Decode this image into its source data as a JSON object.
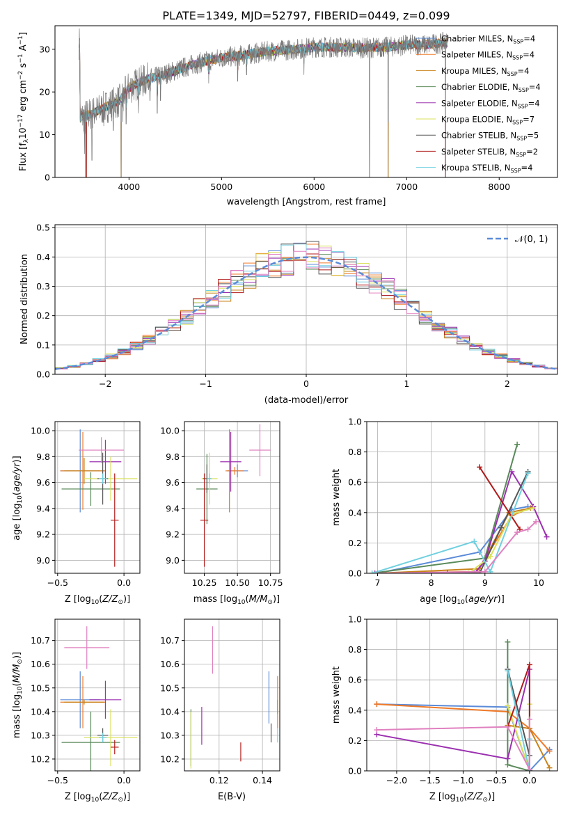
{
  "figure": {
    "title": "PLATE=1349, MJD=52797, FIBERID=0449, z=0.099"
  },
  "colors": {
    "Chabrier MILES": "#5b8bd8",
    "Salpeter MILES": "#f07a28",
    "Kroupa MILES": "#c9831a",
    "Chabrier ELODIE": "#5a8a5a",
    "Salpeter ELODIE": "#9b30b0",
    "Kroupa ELODIE": "#d9e05a",
    "Chabrier STELIB": "#555555",
    "Salpeter STELIB": "#b01a1a",
    "Kroupa STELIB": "#70d0e0",
    "pink": "#e080c0",
    "gauss": "#5b8bd8"
  },
  "chart_data": [
    {
      "id": "spectrum",
      "type": "line",
      "xlabel": "wavelength [Angstrom, rest frame]",
      "ylabel": "Flux [f",
      "xlim": [
        3200,
        8630
      ],
      "ylim": [
        0,
        35.5
      ],
      "xticks": [
        4000,
        5000,
        6000,
        7000,
        8000
      ],
      "yticks": [
        0,
        10,
        20,
        30
      ],
      "grid": false,
      "legend_position": "right",
      "legend": [
        {
          "label": "Chabrier MILES, N",
          "n": "4",
          "color": "#5b8bd8"
        },
        {
          "label": "Salpeter MILES, N",
          "n": "4",
          "color": "#f07a28"
        },
        {
          "label": "Kroupa MILES, N",
          "n": "4",
          "color": "#c9831a"
        },
        {
          "label": "Chabrier ELODIE, N",
          "n": "4",
          "color": "#5a8a5a"
        },
        {
          "label": "Salpeter ELODIE, N",
          "n": "4",
          "color": "#9b30b0"
        },
        {
          "label": "Kroupa ELODIE, N",
          "n": "7",
          "color": "#d9e05a"
        },
        {
          "label": "Chabrier STELIB, N",
          "n": "5",
          "color": "#555555"
        },
        {
          "label": "Salpeter STELIB, N",
          "n": "2",
          "color": "#b01a1a"
        },
        {
          "label": "Kroupa STELIB, N",
          "n": "4",
          "color": "#70d0e0"
        }
      ],
      "continuum": [
        [
          3470,
          14
        ],
        [
          3600,
          15
        ],
        [
          3700,
          16
        ],
        [
          3800,
          17
        ],
        [
          3900,
          18
        ],
        [
          4000,
          21
        ],
        [
          4100,
          22
        ],
        [
          4200,
          23
        ],
        [
          4300,
          23.5
        ],
        [
          4500,
          25
        ],
        [
          4700,
          26.5
        ],
        [
          5000,
          28
        ],
        [
          5200,
          28.5
        ],
        [
          5500,
          29.5
        ],
        [
          5800,
          30
        ],
        [
          6000,
          30.5
        ],
        [
          6200,
          30.5
        ],
        [
          6500,
          30.3
        ],
        [
          6800,
          30.5
        ],
        [
          7000,
          31
        ],
        [
          7200,
          31
        ],
        [
          7400,
          31.5
        ]
      ],
      "data_range": [
        3460,
        7440
      ],
      "dips": [
        [
          3520,
          5.5
        ],
        [
          3540,
          0
        ],
        [
          3600,
          4
        ],
        [
          3727,
          12
        ],
        [
          3830,
          11
        ],
        [
          3915,
          0
        ],
        [
          3934,
          13
        ],
        [
          3969,
          12.5
        ],
        [
          4102,
          15
        ],
        [
          4227,
          18
        ],
        [
          4304,
          15
        ],
        [
          4340,
          18
        ],
        [
          4861,
          22
        ],
        [
          5175,
          22.5
        ],
        [
          5270,
          24
        ],
        [
          5890,
          24
        ],
        [
          6600,
          0
        ],
        [
          6800,
          0
        ],
        [
          7420,
          0
        ]
      ]
    },
    {
      "id": "residuals",
      "type": "histogram",
      "xlabel": "(data-model)/error",
      "ylabel": "Normed distribution",
      "xlim": [
        -2.5,
        2.5
      ],
      "ylim": [
        0,
        0.51
      ],
      "xticks": [
        -2,
        -1,
        0,
        1,
        2
      ],
      "yticks": [
        0,
        0.1,
        0.2,
        0.3,
        0.4,
        0.5
      ],
      "grid": true,
      "bin_width": 0.125,
      "legend": [
        {
          "label": "𝒩(0, 1)",
          "color": "#5b8bd8",
          "style": "dashed"
        }
      ],
      "legend_position": "top-right"
    },
    {
      "id": "age_vs_z",
      "type": "errorbar",
      "xlabel": "Z [log",
      "ylabel": "age  [log",
      "xlim": [
        -0.52,
        0.12
      ],
      "ylim": [
        8.9,
        10.07
      ],
      "xticks": [
        -0.5,
        0.0
      ],
      "xticklabels": [
        "−0.5",
        "0.0"
      ],
      "yticks": [
        9.0,
        9.2,
        9.4,
        9.6,
        9.8,
        10.0
      ],
      "grid": true,
      "points": [
        {
          "color": "#5b8bd8",
          "x": -0.33,
          "xerr": 0.15,
          "y": 9.69,
          "yerr": 0.32
        },
        {
          "color": "#f07a28",
          "x": -0.31,
          "xerr": 0.17,
          "y": 9.69,
          "yerr": 0.3
        },
        {
          "color": "#c9831a",
          "x": -0.3,
          "xerr": 0.15,
          "y": 9.69,
          "yerr": 0.1
        },
        {
          "color": "#5a8a5a",
          "x": -0.25,
          "xerr": 0.22,
          "y": 9.55,
          "yerr": 0.13
        },
        {
          "color": "#9b30b0",
          "x": -0.14,
          "xerr": 0.12,
          "y": 9.76,
          "yerr": 0.17
        },
        {
          "color": "#d9e05a",
          "x": -0.1,
          "xerr": 0.2,
          "y": 9.63,
          "yerr": 0.17
        },
        {
          "color": "#555555",
          "x": -0.16,
          "xerr": 0.04,
          "y": 9.63,
          "yerr": 0.2
        },
        {
          "color": "#b01a1a",
          "x": -0.07,
          "xerr": 0.03,
          "y": 9.31,
          "yerr": 0.36
        },
        {
          "color": "#70d0e0",
          "x": -0.16,
          "xerr": 0.03,
          "y": 9.63,
          "yerr": 0.04
        },
        {
          "color": "#e080c0",
          "x": -0.17,
          "xerr": 0.17,
          "y": 9.85,
          "yerr": 0.1
        }
      ]
    },
    {
      "id": "age_vs_mass",
      "type": "errorbar",
      "xlabel": "mass [log",
      "xlim": [
        10.1,
        10.82
      ],
      "ylim": [
        8.9,
        10.07
      ],
      "xticks": [
        10.25,
        10.5,
        10.75
      ],
      "yticks": [
        9.0,
        9.2,
        9.4,
        9.6,
        9.8,
        10.0
      ],
      "grid": true,
      "points": [
        {
          "color": "#5b8bd8",
          "x": 10.5,
          "xerr": 0.08,
          "y": 9.69,
          "yerr": 0.05
        },
        {
          "color": "#f07a28",
          "x": 10.48,
          "xerr": 0.07,
          "y": 9.69,
          "yerr": 0.03
        },
        {
          "color": "#c9831a",
          "x": 10.44,
          "xerr": 0.01,
          "y": 9.69,
          "yerr": 0.32
        },
        {
          "color": "#5a8a5a",
          "x": 10.27,
          "xerr": 0.08,
          "y": 9.55,
          "yerr": 0.27
        },
        {
          "color": "#9b30b0",
          "x": 10.45,
          "xerr": 0.08,
          "y": 9.76,
          "yerr": 0.23
        },
        {
          "color": "#d9e05a",
          "x": 10.29,
          "xerr": 0.06,
          "y": 9.63,
          "yerr": 0.2
        },
        {
          "color": "#555555",
          "x": 10.27,
          "xerr": 0.03,
          "y": 9.63,
          "yerr": 0.11
        },
        {
          "color": "#b01a1a",
          "x": 10.25,
          "xerr": 0.03,
          "y": 9.31,
          "yerr": 0.36
        },
        {
          "color": "#70d0e0",
          "x": 10.29,
          "xerr": 0.02,
          "y": 9.63,
          "yerr": 0.04
        },
        {
          "color": "#e080c0",
          "x": 10.67,
          "xerr": 0.08,
          "y": 9.85,
          "yerr": 0.2
        }
      ]
    },
    {
      "id": "weight_vs_age",
      "type": "line",
      "xlabel": "age  [log",
      "ylabel": "mass weight",
      "xlim": [
        6.8,
        10.35
      ],
      "ylim": [
        0,
        1.0
      ],
      "xticks": [
        7,
        8,
        9,
        10
      ],
      "yticks": [
        0,
        0.2,
        0.4,
        0.6,
        0.8,
        1.0
      ],
      "grid": true,
      "series": [
        {
          "color": "#5b8bd8",
          "x": [
            7.0,
            8.9,
            9.5,
            9.8
          ],
          "y": [
            0.0,
            0.14,
            0.42,
            0.44
          ]
        },
        {
          "color": "#f07a28",
          "x": [
            6.95,
            8.85,
            9.5,
            9.9
          ],
          "y": [
            0.0,
            0.01,
            0.38,
            0.44
          ]
        },
        {
          "color": "#c9831a",
          "x": [
            7.0,
            8.9,
            9.45,
            9.85
          ],
          "y": [
            0.0,
            0.03,
            0.4,
            0.43
          ]
        },
        {
          "color": "#5a8a5a",
          "x": [
            6.9,
            9.0,
            9.6
          ],
          "y": [
            0.0,
            0.1,
            0.85
          ]
        },
        {
          "color": "#9b30b0",
          "x": [
            6.95,
            8.8,
            9.0,
            9.5,
            9.9,
            10.15
          ],
          "y": [
            0.0,
            0.0,
            0.08,
            0.67,
            0.44,
            0.24
          ]
        },
        {
          "color": "#d9e05a",
          "x": [
            6.9,
            8.7,
            9.1,
            9.5,
            9.9
          ],
          "y": [
            0.0,
            0.0,
            0.11,
            0.39,
            0.43
          ]
        },
        {
          "color": "#555555",
          "x": [
            8.3,
            8.9,
            9.3,
            9.8
          ],
          "y": [
            0.0,
            0.0,
            0.3,
            0.67
          ]
        },
        {
          "color": "#b01a1a",
          "x": [
            8.9,
            9.65
          ],
          "y": [
            0.7,
            0.29
          ]
        },
        {
          "color": "#70d0e0",
          "x": [
            6.9,
            8.8,
            9.1,
            9.8
          ],
          "y": [
            0.0,
            0.21,
            0.01,
            0.66
          ]
        },
        {
          "color": "#e080c0",
          "x": [
            7.0,
            9.0,
            9.6,
            9.8,
            9.95
          ],
          "y": [
            0.0,
            0.01,
            0.27,
            0.29,
            0.34
          ]
        }
      ]
    },
    {
      "id": "mass_vs_z",
      "type": "errorbar",
      "xlabel": "Z [log",
      "ylabel": "mass [log",
      "xlim": [
        -0.52,
        0.12
      ],
      "ylim": [
        10.15,
        10.79
      ],
      "xticks": [
        -0.5,
        0.0
      ],
      "xticklabels": [
        "−0.5",
        "0.0"
      ],
      "yticks": [
        10.2,
        10.3,
        10.4,
        10.5,
        10.6,
        10.7
      ],
      "grid": true,
      "points": [
        {
          "color": "#5b8bd8",
          "x": -0.33,
          "xerr": 0.15,
          "y": 10.45,
          "yerr": 0.12
        },
        {
          "color": "#f07a28",
          "x": -0.31,
          "xerr": 0.17,
          "y": 10.44,
          "yerr": 0.11
        },
        {
          "color": "#c9831a",
          "x": -0.3,
          "xerr": 0.15,
          "y": 10.44,
          "yerr": 0.01
        },
        {
          "color": "#5a8a5a",
          "x": -0.25,
          "xerr": 0.22,
          "y": 10.27,
          "yerr": 0.13
        },
        {
          "color": "#9b30b0",
          "x": -0.14,
          "xerr": 0.12,
          "y": 10.45,
          "yerr": 0.08
        },
        {
          "color": "#d9e05a",
          "x": -0.1,
          "xerr": 0.2,
          "y": 10.29,
          "yerr": 0.12
        },
        {
          "color": "#555555",
          "x": -0.16,
          "xerr": 0.04,
          "y": 10.3,
          "yerr": 0.03
        },
        {
          "color": "#b01a1a",
          "x": -0.07,
          "xerr": 0.03,
          "y": 10.25,
          "yerr": 0.03
        },
        {
          "color": "#70d0e0",
          "x": -0.16,
          "xerr": 0.03,
          "y": 10.29,
          "yerr": 0.02
        },
        {
          "color": "#e080c0",
          "x": -0.28,
          "xerr": 0.17,
          "y": 10.67,
          "yerr": 0.09
        }
      ]
    },
    {
      "id": "mass_vs_ebv",
      "type": "errorbar",
      "xlabel": "E(B-V)",
      "xlim": [
        0.104,
        0.148
      ],
      "ylim": [
        10.15,
        10.79
      ],
      "xticks": [
        0.12,
        0.14
      ],
      "yticks": [
        10.2,
        10.3,
        10.4,
        10.5,
        10.6,
        10.7
      ],
      "grid": true,
      "points": [
        {
          "color": "#5b8bd8",
          "x": 0.143,
          "xerr": 0,
          "y": 10.46,
          "yerr": 0.11
        },
        {
          "color": "#f07a28",
          "x": 0.147,
          "xerr": 0,
          "y": 10.44,
          "yerr": 0.11
        },
        {
          "color": "#c9831a",
          "x": 0.147,
          "xerr": 0,
          "y": 10.42,
          "yerr": 0.03
        },
        {
          "color": "#5a8a5a",
          "x": 0.107,
          "xerr": 0,
          "y": 10.29,
          "yerr": 0.12
        },
        {
          "color": "#9b30b0",
          "x": 0.112,
          "xerr": 0,
          "y": 10.34,
          "yerr": 0.08
        },
        {
          "color": "#d9e05a",
          "x": 0.107,
          "xerr": 0,
          "y": 10.28,
          "yerr": 0.12
        },
        {
          "color": "#555555",
          "x": 0.144,
          "xerr": 0,
          "y": 10.31,
          "yerr": 0.04
        },
        {
          "color": "#b01a1a",
          "x": 0.13,
          "xerr": 0,
          "y": 10.23,
          "yerr": 0.04
        },
        {
          "color": "#70d0e0",
          "x": 0.147,
          "xerr": 0,
          "y": 10.3,
          "yerr": 0.03
        },
        {
          "color": "#e080c0",
          "x": 0.117,
          "xerr": 0,
          "y": 10.66,
          "yerr": 0.1
        }
      ]
    },
    {
      "id": "weight_vs_z",
      "type": "line",
      "xlabel": "Z [log",
      "ylabel": "mass weight",
      "xlim": [
        -2.45,
        0.42
      ],
      "ylim": [
        0,
        1.0
      ],
      "xticks": [
        -2.0,
        -1.5,
        -1.0,
        -0.5,
        0.0
      ],
      "xticklabels": [
        "−2.0",
        "−1.5",
        "−1.0",
        "−0.5",
        "0.0"
      ],
      "yticks": [
        0,
        0.2,
        0.4,
        0.6,
        0.8,
        1.0
      ],
      "grid": true,
      "series": [
        {
          "color": "#5b8bd8",
          "x": [
            -2.3,
            -0.33,
            0.0,
            0.3
          ],
          "y": [
            0.44,
            0.42,
            0.0,
            0.14
          ]
        },
        {
          "color": "#f07a28",
          "x": [
            -2.3,
            -0.33,
            0.0,
            0.3
          ],
          "y": [
            0.44,
            0.39,
            0.28,
            0.13
          ]
        },
        {
          "color": "#c9831a",
          "x": [
            -0.33,
            0.0,
            0.3
          ],
          "y": [
            0.3,
            0.28,
            0.02
          ]
        },
        {
          "color": "#5a8a5a",
          "x": [
            -0.33,
            -0.33,
            0.0
          ],
          "y": [
            0.85,
            0.04,
            0.0
          ]
        },
        {
          "color": "#9b30b0",
          "x": [
            -2.3,
            -0.33,
            0.0,
            0.0
          ],
          "y": [
            0.24,
            0.08,
            0.67,
            0.0
          ]
        },
        {
          "color": "#d9e05a",
          "x": [
            -0.33,
            0.0,
            0.0
          ],
          "y": [
            0.43,
            0.0,
            0.44
          ]
        },
        {
          "color": "#555555",
          "x": [
            -0.33,
            0.0,
            0.0
          ],
          "y": [
            0.67,
            0.1,
            0.0
          ]
        },
        {
          "color": "#b01a1a",
          "x": [
            -0.33,
            0.0,
            0.0
          ],
          "y": [
            0.29,
            0.7,
            0.0
          ]
        },
        {
          "color": "#70d0e0",
          "x": [
            -0.33,
            0.0,
            0.0
          ],
          "y": [
            0.66,
            0.0,
            0.21
          ]
        },
        {
          "color": "#e080c0",
          "x": [
            -2.3,
            -0.33,
            0.0,
            0.0
          ],
          "y": [
            0.27,
            0.29,
            0.01,
            0.34
          ]
        }
      ]
    }
  ]
}
